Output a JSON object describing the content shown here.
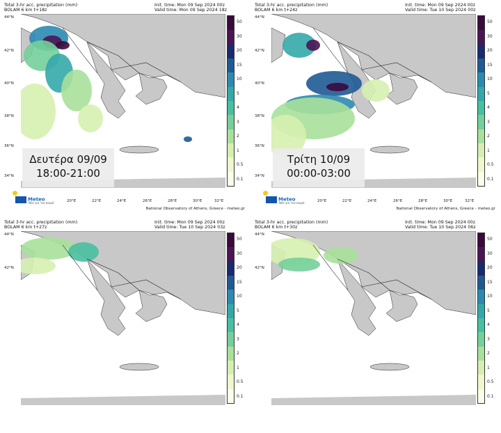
{
  "panels": [
    {
      "title": "Total 3-hr acc. precipitation (mm)",
      "model": "BOLAM 6 km t+18z",
      "init": "Init. time: Mon 09 Sep 2024 00z",
      "valid": "Valid time: Mon 09 Sep 2024 18z",
      "overlay_day": "Δευτέρα 09/09",
      "overlay_time": "18:00-21:00"
    },
    {
      "title": "Total 3-hr acc. precipitation (mm)",
      "model": "BOLAM 6 km t+24z",
      "init": "Init. time: Mon 09 Sep 2024 00z",
      "valid": "Valid time: Tue 10 Sep 2024 00z",
      "overlay_day": "Τρίτη 10/09",
      "overlay_time": "00:00-03:00"
    },
    {
      "title": "Total 3-hr acc. precipitation (mm)",
      "model": "BOLAM 6 km t+27z",
      "init": "Init. time: Mon 09 Sep 2024 00z",
      "valid": "Valid time: Tue 10 Sep 2024 03z",
      "overlay_day": "",
      "overlay_time": ""
    },
    {
      "title": "Total 3-hr acc. precipitation (mm)",
      "model": "BOLAM 6 km t+30z",
      "init": "Init. time: Mon 09 Sep 2024 00z",
      "valid": "Valid time: Tue 10 Sep 2024 06z",
      "overlay_day": "",
      "overlay_time": ""
    }
  ],
  "lat_labels": [
    "44°N",
    "42°N",
    "40°N",
    "38°N",
    "36°N",
    "34°N"
  ],
  "lon_labels": [
    "20°E",
    "22°E",
    "24°E",
    "26°E",
    "28°E",
    "30°E",
    "32°E"
  ],
  "colorbar": {
    "levels": [
      "50",
      "30",
      "20",
      "15",
      "10",
      "5",
      "4",
      "3",
      "2",
      "1",
      "0.5",
      "0.1"
    ],
    "colors": [
      "#3a0a3a",
      "#4b1555",
      "#1a2a6e",
      "#1f5a94",
      "#2c8ab0",
      "#34a8a8",
      "#48bfa0",
      "#74cf9a",
      "#a9e09b",
      "#d6efb0",
      "#eef8cc",
      "#fbfde8"
    ]
  },
  "logo": {
    "name": "Meteo",
    "sub": "Νέα για τον καιρό"
  },
  "footer": "National Observatory of Athens, Greece - meteo.gr",
  "colors": {
    "land": "#c8c8c8",
    "sea": "#ffffff",
    "border": "#222222"
  }
}
